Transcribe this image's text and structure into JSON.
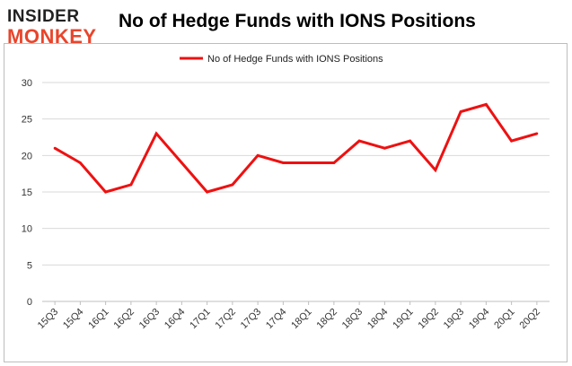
{
  "brand": {
    "line1": "INSIDER",
    "line2": "MONKEY"
  },
  "chart_data": {
    "type": "line",
    "title": "No of Hedge Funds with IONS Positions",
    "xlabel": "",
    "ylabel": "",
    "ylim": [
      0,
      30
    ],
    "yticks": [
      0,
      5,
      10,
      15,
      20,
      25,
      30
    ],
    "grid": true,
    "legend": "top-center",
    "categories": [
      "15Q3",
      "15Q4",
      "16Q1",
      "16Q2",
      "16Q3",
      "16Q4",
      "17Q1",
      "17Q2",
      "17Q3",
      "17Q4",
      "18Q1",
      "18Q2",
      "18Q3",
      "18Q4",
      "19Q1",
      "19Q2",
      "19Q3",
      "19Q4",
      "20Q1",
      "20Q2"
    ],
    "series": [
      {
        "name": "No of Hedge Funds with IONS Positions",
        "color": "#ee1111",
        "values": [
          21,
          19,
          15,
          16,
          23,
          19,
          15,
          16,
          20,
          19,
          19,
          19,
          22,
          21,
          22,
          18,
          26,
          27,
          22,
          23
        ]
      }
    ]
  }
}
